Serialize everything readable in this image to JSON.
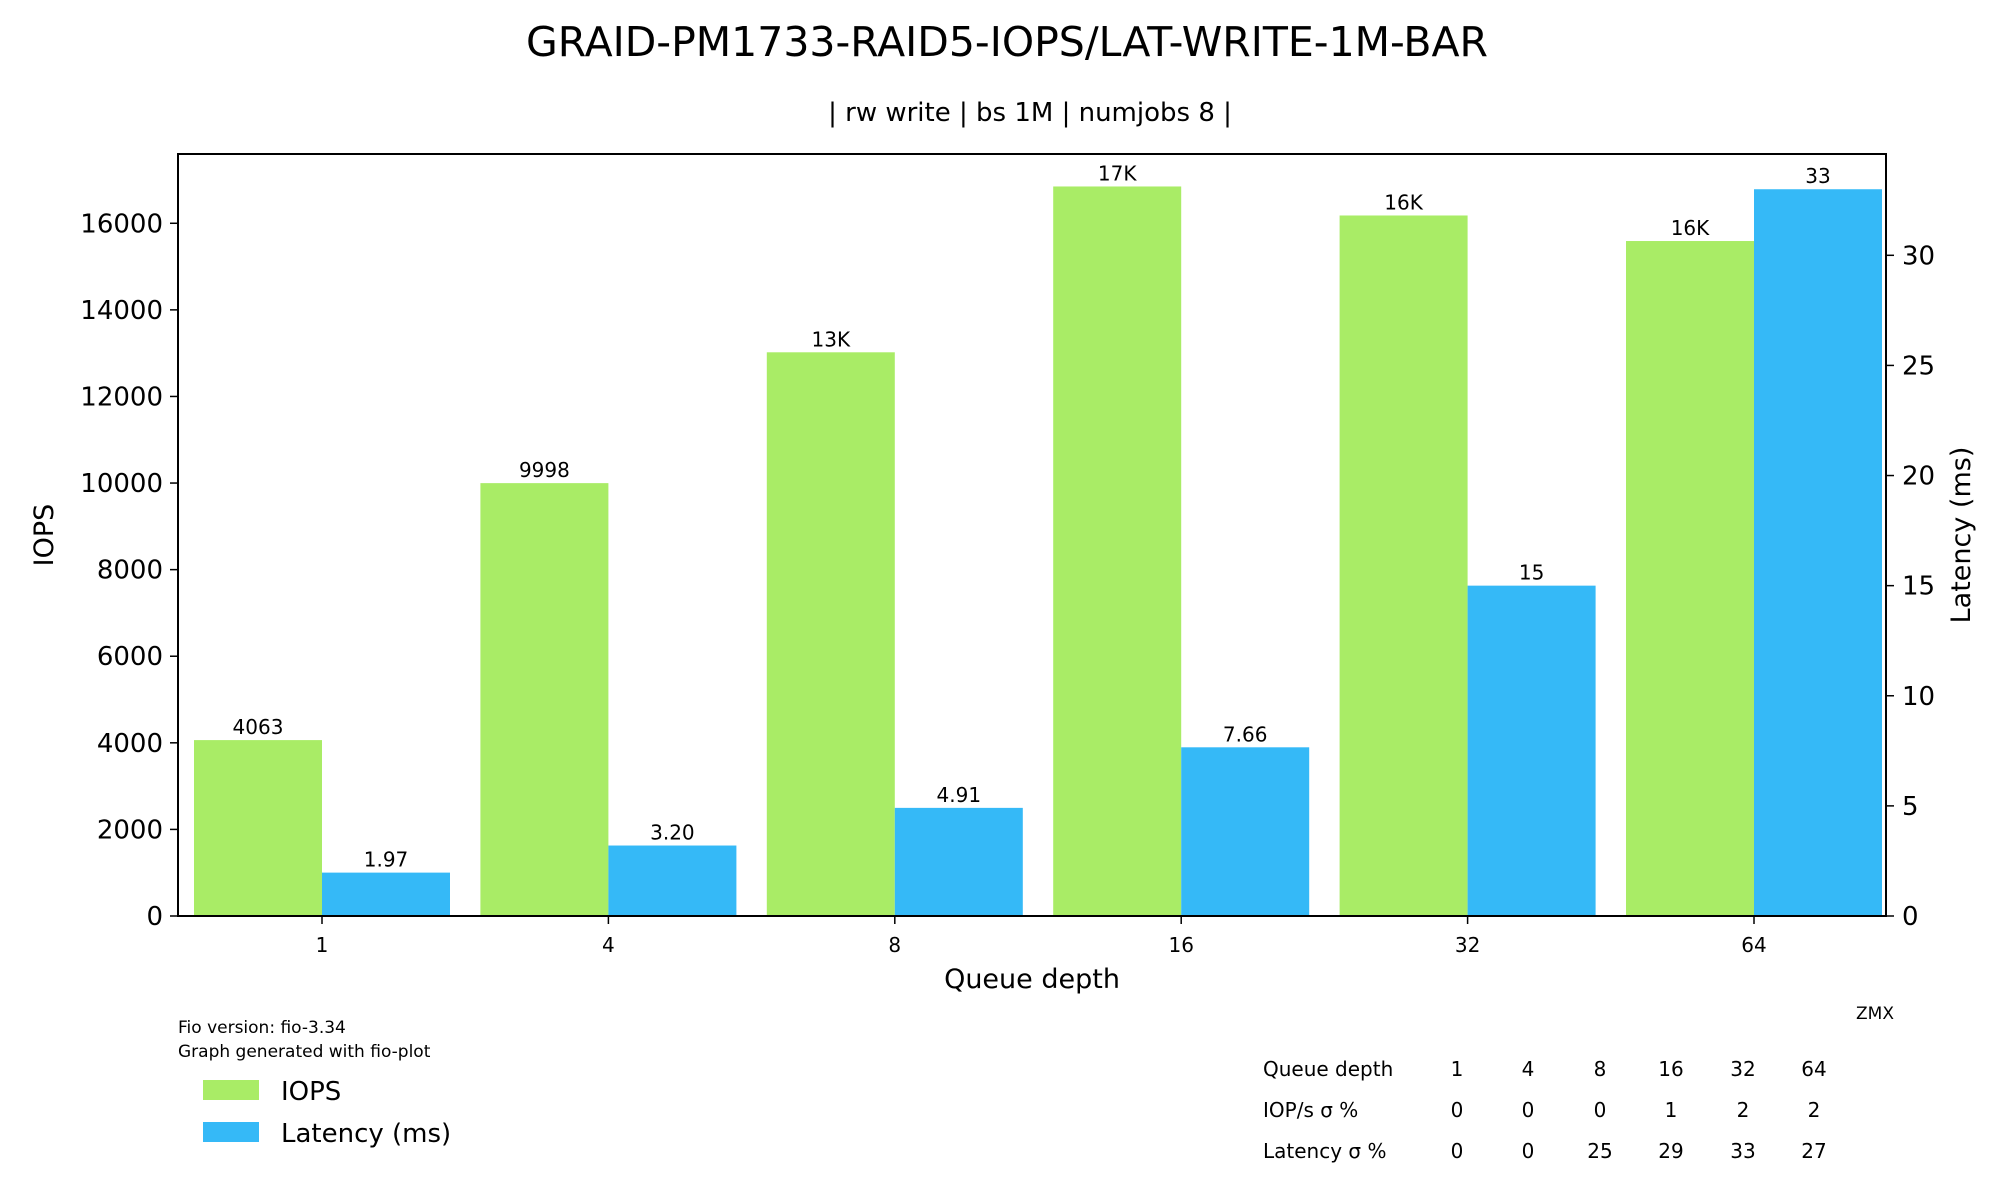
{
  "chart_data": {
    "type": "bar",
    "title": "GRAID-PM1733-RAID5-IOPS/LAT-WRITE-1M-BAR",
    "subtitle": "| rw write | bs 1M | numjobs 8 |",
    "xlabel": "Queue depth",
    "ylabel": "IOPS",
    "y2label": "Latency (ms)",
    "categories": [
      "1",
      "4",
      "8",
      "16",
      "32",
      "64"
    ],
    "ylim": [
      0,
      17600
    ],
    "y2lim": [
      0,
      34.6
    ],
    "yticks": [
      0,
      2000,
      4000,
      6000,
      8000,
      10000,
      12000,
      14000,
      16000
    ],
    "y2ticks": [
      0,
      5,
      10,
      15,
      20,
      25,
      30
    ],
    "series": [
      {
        "name": "IOPS",
        "axis": "left",
        "color": "#a9ec66",
        "values": [
          4063,
          9998,
          13020,
          16850,
          16180,
          15590
        ],
        "labels": [
          "4063",
          "9998",
          "13K",
          "17K",
          "16K",
          "16K"
        ]
      },
      {
        "name": "Latency (ms)",
        "axis": "right",
        "color": "#35b9f7",
        "values": [
          1.97,
          3.2,
          4.91,
          7.66,
          15,
          33
        ],
        "labels": [
          "1.97",
          "3.20",
          "4.91",
          "7.66",
          "15",
          "33"
        ]
      }
    ],
    "grid": false,
    "legend_position": "bottom-left"
  },
  "footer": {
    "fio_version": "Fio version: fio-3.34",
    "generated_with": "Graph generated with fio-plot",
    "author": "ZMX"
  },
  "stats_table": {
    "rows": [
      {
        "label": "Queue depth",
        "values": [
          "1",
          "4",
          "8",
          "16",
          "32",
          "64"
        ]
      },
      {
        "label": "IOP/s σ %",
        "values": [
          "0",
          "0",
          "0",
          "1",
          "2",
          "2"
        ]
      },
      {
        "label": "Latency σ %",
        "values": [
          "0",
          "0",
          "25",
          "29",
          "33",
          "27"
        ]
      }
    ]
  }
}
